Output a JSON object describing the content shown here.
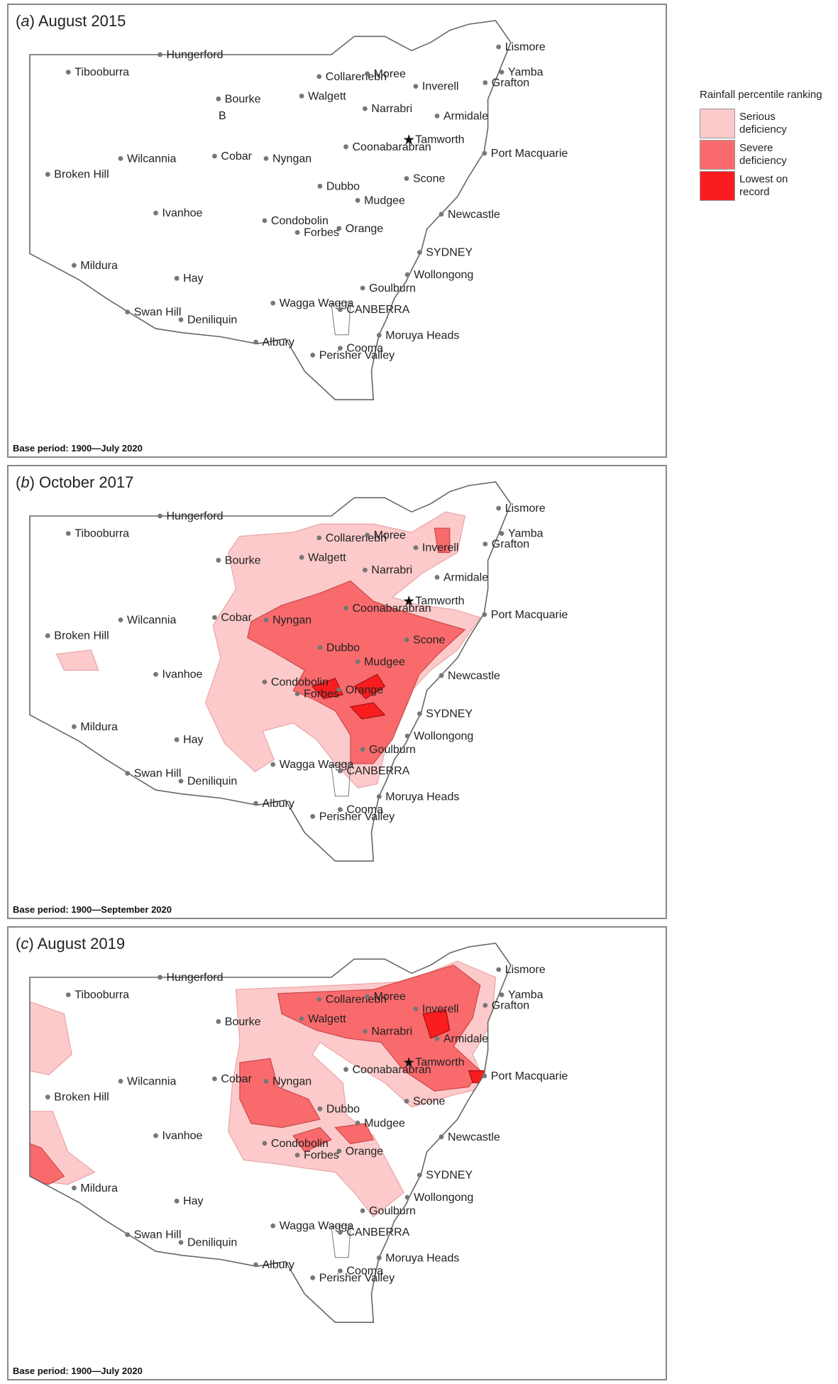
{
  "legend": {
    "title": "Rainfall percentile ranking",
    "items": [
      {
        "label": "Serious deficiency",
        "color": "#fccacb"
      },
      {
        "label": "Severe deficiency",
        "color": "#f96a6c"
      },
      {
        "label": "Lowest on record",
        "color": "#f91d20"
      }
    ]
  },
  "panels": [
    {
      "letter": "a",
      "title": "August 2015",
      "base_period": "Base period: 1900—July 2020"
    },
    {
      "letter": "b",
      "title": "October 2017",
      "base_period": "Base period: 1900—September 2020"
    },
    {
      "letter": "c",
      "title": "August 2019",
      "base_period": "Base period: 1900—July 2020"
    }
  ],
  "map_extras": {
    "panel_a_letter": "B"
  },
  "towns": [
    {
      "name": "Hungerford",
      "lon": 144.41,
      "lat": -29.0
    },
    {
      "name": "Tibooburra",
      "lon": 142.01,
      "lat": -29.43
    },
    {
      "name": "Collarenebri",
      "lon": 148.58,
      "lat": -29.54
    },
    {
      "name": "Moree",
      "lon": 149.84,
      "lat": -29.47
    },
    {
      "name": "Lismore",
      "lon": 153.28,
      "lat": -28.81
    },
    {
      "name": "Yamba",
      "lon": 153.36,
      "lat": -29.43
    },
    {
      "name": "Grafton",
      "lon": 152.93,
      "lat": -29.69
    },
    {
      "name": "Inverell",
      "lon": 151.11,
      "lat": -29.78
    },
    {
      "name": "Bourke",
      "lon": 145.94,
      "lat": -30.09
    },
    {
      "name": "Walgett",
      "lon": 148.12,
      "lat": -30.02
    },
    {
      "name": "Narrabri",
      "lon": 149.78,
      "lat": -30.33
    },
    {
      "name": "Armidale",
      "lon": 151.67,
      "lat": -30.51
    },
    {
      "name": "Tamworth",
      "lon": 150.93,
      "lat": -31.09
    },
    {
      "name": "Coonabarabran",
      "lon": 149.28,
      "lat": -31.27
    },
    {
      "name": "Wilcannia",
      "lon": 143.38,
      "lat": -31.56
    },
    {
      "name": "Cobar",
      "lon": 145.84,
      "lat": -31.5
    },
    {
      "name": "Nyngan",
      "lon": 147.19,
      "lat": -31.56
    },
    {
      "name": "Port Macquarie",
      "lon": 152.91,
      "lat": -31.43
    },
    {
      "name": "Broken Hill",
      "lon": 141.47,
      "lat": -31.95
    },
    {
      "name": "Dubbo",
      "lon": 148.6,
      "lat": -32.24
    },
    {
      "name": "Scone",
      "lon": 150.87,
      "lat": -32.05
    },
    {
      "name": "Mudgee",
      "lon": 149.59,
      "lat": -32.59
    },
    {
      "name": "Ivanhoe",
      "lon": 144.3,
      "lat": -32.9
    },
    {
      "name": "Newcastle",
      "lon": 151.78,
      "lat": -32.93
    },
    {
      "name": "Condobolin",
      "lon": 147.15,
      "lat": -33.09
    },
    {
      "name": "Orange",
      "lon": 149.1,
      "lat": -33.28
    },
    {
      "name": "Forbes",
      "lon": 148.01,
      "lat": -33.38
    },
    {
      "name": "SYDNEY",
      "lon": 151.21,
      "lat": -33.87
    },
    {
      "name": "Mildura",
      "lon": 142.16,
      "lat": -34.19
    },
    {
      "name": "Hay",
      "lon": 144.85,
      "lat": -34.51
    },
    {
      "name": "Wollongong",
      "lon": 150.89,
      "lat": -34.42
    },
    {
      "name": "Goulburn",
      "lon": 149.72,
      "lat": -34.75
    },
    {
      "name": "Wagga Wagga",
      "lon": 147.37,
      "lat": -35.12
    },
    {
      "name": "Swan Hill",
      "lon": 143.56,
      "lat": -35.34
    },
    {
      "name": "Deniliquin",
      "lon": 144.96,
      "lat": -35.53
    },
    {
      "name": "CANBERRA",
      "lon": 149.13,
      "lat": -35.28
    },
    {
      "name": "Albury",
      "lon": 146.92,
      "lat": -36.08
    },
    {
      "name": "Moruya Heads",
      "lon": 150.15,
      "lat": -35.91
    },
    {
      "name": "Cooma",
      "lon": 149.13,
      "lat": -36.23
    },
    {
      "name": "Perisher Valley",
      "lon": 148.41,
      "lat": -36.4
    }
  ],
  "deficiency_areas": {
    "a": [],
    "b": [
      {
        "category": "Serious deficiency",
        "outline": [
          [
            146.5,
            -29.5
          ],
          [
            147.9,
            -29.4
          ],
          [
            148.6,
            -29.2
          ],
          [
            150.0,
            -29.2
          ],
          [
            151.0,
            -29.4
          ],
          [
            151.9,
            -28.9
          ],
          [
            152.4,
            -29.0
          ],
          [
            152.2,
            -29.9
          ],
          [
            151.3,
            -30.4
          ],
          [
            150.5,
            -31.0
          ],
          [
            151.2,
            -31.2
          ],
          [
            152.1,
            -31.3
          ],
          [
            152.8,
            -31.5
          ],
          [
            152.2,
            -32.3
          ],
          [
            151.5,
            -32.8
          ],
          [
            151.0,
            -33.3
          ],
          [
            150.7,
            -34.0
          ],
          [
            150.3,
            -34.8
          ],
          [
            150.1,
            -35.6
          ],
          [
            149.6,
            -35.7
          ],
          [
            149.0,
            -35.1
          ],
          [
            148.5,
            -34.5
          ],
          [
            147.9,
            -34.1
          ],
          [
            147.1,
            -34.3
          ],
          [
            147.4,
            -35.0
          ],
          [
            146.9,
            -35.3
          ],
          [
            146.1,
            -34.6
          ],
          [
            145.6,
            -33.6
          ],
          [
            146.0,
            -32.5
          ],
          [
            145.8,
            -31.7
          ],
          [
            146.4,
            -30.8
          ],
          [
            146.2,
            -29.9
          ]
        ]
      },
      {
        "category": "Serious deficiency",
        "outline": [
          [
            141.7,
            -32.4
          ],
          [
            142.6,
            -32.3
          ],
          [
            142.8,
            -32.8
          ],
          [
            141.9,
            -32.8
          ]
        ]
      },
      {
        "category": "Severe deficiency",
        "outline": [
          [
            146.8,
            -31.6
          ],
          [
            147.6,
            -31.2
          ],
          [
            148.6,
            -30.9
          ],
          [
            149.4,
            -30.6
          ],
          [
            150.0,
            -31.1
          ],
          [
            150.6,
            -31.3
          ],
          [
            151.3,
            -31.5
          ],
          [
            152.4,
            -31.8
          ],
          [
            151.7,
            -32.4
          ],
          [
            151.2,
            -32.9
          ],
          [
            150.9,
            -33.6
          ],
          [
            150.5,
            -34.5
          ],
          [
            150.0,
            -35.1
          ],
          [
            149.4,
            -35.1
          ],
          [
            149.4,
            -34.4
          ],
          [
            149.0,
            -33.8
          ],
          [
            148.4,
            -33.5
          ],
          [
            147.9,
            -33.3
          ],
          [
            148.2,
            -32.8
          ],
          [
            147.3,
            -32.3
          ],
          [
            146.7,
            -32.0
          ]
        ]
      },
      {
        "category": "Severe deficiency",
        "outline": [
          [
            151.6,
            -29.3
          ],
          [
            152.0,
            -29.3
          ],
          [
            152.0,
            -29.9
          ],
          [
            151.7,
            -29.9
          ]
        ]
      },
      {
        "category": "Lowest on record",
        "outline": [
          [
            148.4,
            -33.2
          ],
          [
            149.0,
            -33.0
          ],
          [
            149.2,
            -33.4
          ],
          [
            148.7,
            -33.5
          ]
        ]
      },
      {
        "category": "Lowest on record",
        "outline": [
          [
            149.5,
            -33.2
          ],
          [
            150.1,
            -32.9
          ],
          [
            150.3,
            -33.2
          ],
          [
            149.8,
            -33.5
          ]
        ]
      },
      {
        "category": "Lowest on record",
        "outline": [
          [
            149.4,
            -33.7
          ],
          [
            150.0,
            -33.6
          ],
          [
            150.3,
            -33.9
          ],
          [
            149.7,
            -34.0
          ]
        ]
      }
    ],
    "c": [
      {
        "category": "Serious deficiency",
        "outline": [
          [
            146.4,
            -29.3
          ],
          [
            149.0,
            -29.2
          ],
          [
            150.9,
            -29.1
          ],
          [
            152.2,
            -28.6
          ],
          [
            153.2,
            -29.0
          ],
          [
            153.1,
            -30.1
          ],
          [
            152.6,
            -30.9
          ],
          [
            153.0,
            -31.7
          ],
          [
            152.1,
            -31.9
          ],
          [
            151.0,
            -32.2
          ],
          [
            150.3,
            -31.6
          ],
          [
            149.4,
            -31.1
          ],
          [
            148.6,
            -30.6
          ],
          [
            148.4,
            -30.9
          ],
          [
            149.2,
            -31.6
          ],
          [
            149.3,
            -32.4
          ],
          [
            150.0,
            -32.9
          ],
          [
            150.4,
            -33.6
          ],
          [
            150.8,
            -34.3
          ],
          [
            150.0,
            -34.9
          ],
          [
            149.5,
            -34.3
          ],
          [
            149.0,
            -33.8
          ],
          [
            148.2,
            -33.7
          ],
          [
            147.5,
            -33.6
          ],
          [
            146.6,
            -33.5
          ],
          [
            146.2,
            -32.8
          ],
          [
            146.3,
            -31.7
          ],
          [
            146.5,
            -30.6
          ]
        ]
      },
      {
        "category": "Serious deficiency",
        "outline": [
          [
            141.0,
            -29.6
          ],
          [
            141.9,
            -29.9
          ],
          [
            142.1,
            -30.9
          ],
          [
            141.5,
            -31.4
          ],
          [
            141.0,
            -31.3
          ]
        ]
      },
      {
        "category": "Serious deficiency",
        "outline": [
          [
            141.0,
            -32.3
          ],
          [
            141.6,
            -32.3
          ],
          [
            142.0,
            -33.3
          ],
          [
            142.7,
            -33.8
          ],
          [
            142.0,
            -34.1
          ],
          [
            141.0,
            -34.0
          ]
        ]
      },
      {
        "category": "Severe deficiency",
        "outline": [
          [
            147.5,
            -29.4
          ],
          [
            150.0,
            -29.3
          ],
          [
            152.1,
            -28.7
          ],
          [
            152.8,
            -29.2
          ],
          [
            152.6,
            -30.0
          ],
          [
            152.1,
            -30.7
          ],
          [
            152.8,
            -31.3
          ],
          [
            152.5,
            -31.7
          ],
          [
            151.6,
            -31.8
          ],
          [
            150.8,
            -31.3
          ],
          [
            150.2,
            -30.6
          ],
          [
            149.3,
            -30.5
          ],
          [
            148.5,
            -30.3
          ],
          [
            147.6,
            -29.9
          ]
        ]
      },
      {
        "category": "Severe deficiency",
        "outline": [
          [
            146.5,
            -31.1
          ],
          [
            147.3,
            -31.0
          ],
          [
            147.5,
            -31.7
          ],
          [
            148.3,
            -32.0
          ],
          [
            148.6,
            -32.5
          ],
          [
            147.6,
            -32.7
          ],
          [
            146.8,
            -32.6
          ],
          [
            146.5,
            -32.0
          ]
        ]
      },
      {
        "category": "Severe deficiency",
        "outline": [
          [
            141.0,
            -33.1
          ],
          [
            141.3,
            -33.2
          ],
          [
            141.9,
            -33.9
          ],
          [
            141.5,
            -34.1
          ],
          [
            141.0,
            -34.0
          ]
        ]
      },
      {
        "category": "Severe deficiency",
        "outline": [
          [
            147.9,
            -32.9
          ],
          [
            148.6,
            -32.7
          ],
          [
            148.9,
            -33.0
          ],
          [
            148.2,
            -33.3
          ]
        ]
      },
      {
        "category": "Severe deficiency",
        "outline": [
          [
            149.0,
            -32.7
          ],
          [
            149.8,
            -32.6
          ],
          [
            150.0,
            -33.0
          ],
          [
            149.4,
            -33.1
          ]
        ]
      },
      {
        "category": "Lowest on record",
        "outline": [
          [
            151.3,
            -29.9
          ],
          [
            151.9,
            -29.8
          ],
          [
            152.0,
            -30.3
          ],
          [
            151.5,
            -30.5
          ]
        ]
      },
      {
        "category": "Lowest on record",
        "outline": [
          [
            152.5,
            -31.3
          ],
          [
            153.0,
            -31.3
          ],
          [
            153.0,
            -31.6
          ],
          [
            152.6,
            -31.6
          ]
        ]
      }
    ]
  }
}
